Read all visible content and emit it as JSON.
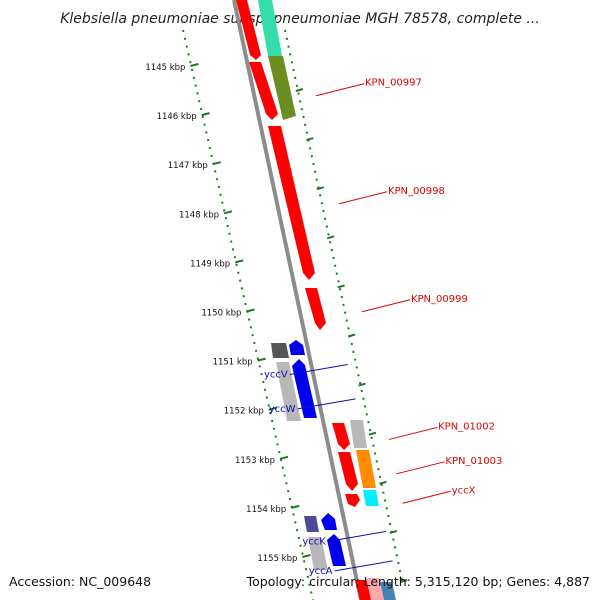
{
  "header": {
    "title": "Klebsiella pneumoniae subsp. pneumoniae MGH 78578, complete ..."
  },
  "footer": {
    "accession": "Accession: NC_009648",
    "summary": "Topology: circular; Length: 5,315,120 bp; Genes: 4,887"
  },
  "colors": {
    "backbone": "#8c8c8c",
    "tick": "#1e7a1e",
    "label_red": "#dd0000",
    "label_blue": "#1010b0"
  },
  "ticks": [
    {
      "kbp": 1145,
      "label": "1145 kbp"
    },
    {
      "kbp": 1146,
      "label": "1146 kbp"
    },
    {
      "kbp": 1147,
      "label": "1147 kbp"
    },
    {
      "kbp": 1148,
      "label": "1148 kbp"
    },
    {
      "kbp": 1149,
      "label": "1149 kbp"
    },
    {
      "kbp": 1150,
      "label": "1150 kbp"
    },
    {
      "kbp": 1151,
      "label": "1151 kbp"
    },
    {
      "kbp": 1152,
      "label": "1152 kbp"
    },
    {
      "kbp": 1153,
      "label": "1153 kbp"
    },
    {
      "kbp": 1154,
      "label": "1154 kbp"
    },
    {
      "kbp": 1155,
      "label": "1155 kbp"
    }
  ],
  "gene_labels": [
    {
      "name": "KPN_00997",
      "side": "right",
      "color": "#dd0000",
      "kbp": 1145.3
    },
    {
      "name": "KPN_00998",
      "side": "right",
      "color": "#dd0000",
      "kbp": 1147.5
    },
    {
      "name": "KPN_00999",
      "side": "right",
      "color": "#dd0000",
      "kbp": 1149.7
    },
    {
      "name": "KPN_01002",
      "side": "right",
      "color": "#dd0000",
      "kbp": 1152.3
    },
    {
      "name": "KPN_01003",
      "side": "right",
      "color": "#dd0000",
      "kbp": 1153.0
    },
    {
      "name": "yccX",
      "side": "right",
      "color": "#dd0000",
      "kbp": 1153.6
    },
    {
      "name": "yccV",
      "side": "left",
      "color": "#1010b0",
      "kbp": 1151.1
    },
    {
      "name": "yccW",
      "side": "left",
      "color": "#1010b0",
      "kbp": 1151.8
    },
    {
      "name": "yccK",
      "side": "left",
      "color": "#1010b0",
      "kbp": 1154.5
    },
    {
      "name": "yccA",
      "side": "left",
      "color": "#1010b0",
      "kbp": 1155.1
    }
  ]
}
